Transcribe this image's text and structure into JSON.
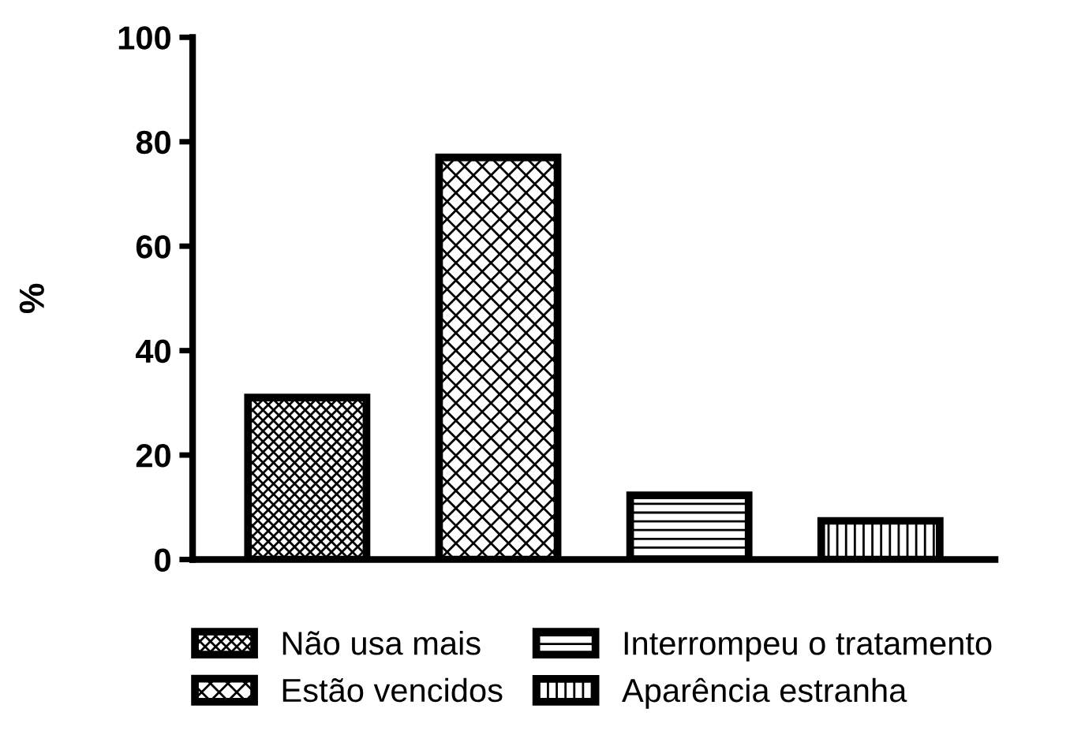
{
  "chart_data": {
    "type": "bar",
    "ylabel": "%",
    "categories": [
      null,
      null,
      null,
      null
    ],
    "series": [
      {
        "name": "Não usa mais",
        "color": "#000000",
        "values": [
          31,
          null,
          null,
          null
        ]
      },
      {
        "name": "Estão vencidos",
        "color": "#000000",
        "values": [
          null,
          77,
          null,
          null
        ]
      },
      {
        "name": "Interrompeu o tratamento",
        "color": "#000000",
        "values": [
          null,
          null,
          12.3,
          null
        ]
      },
      {
        "name": "Aparência estranha",
        "color": "#000000",
        "values": [
          null,
          null,
          null,
          7.4
        ]
      }
    ],
    "ylim": [
      0,
      100
    ],
    "yticks": [
      0,
      20,
      40,
      60,
      80,
      100
    ],
    "grid": false,
    "legend": "bottom",
    "tick_labels": "y"
  }
}
